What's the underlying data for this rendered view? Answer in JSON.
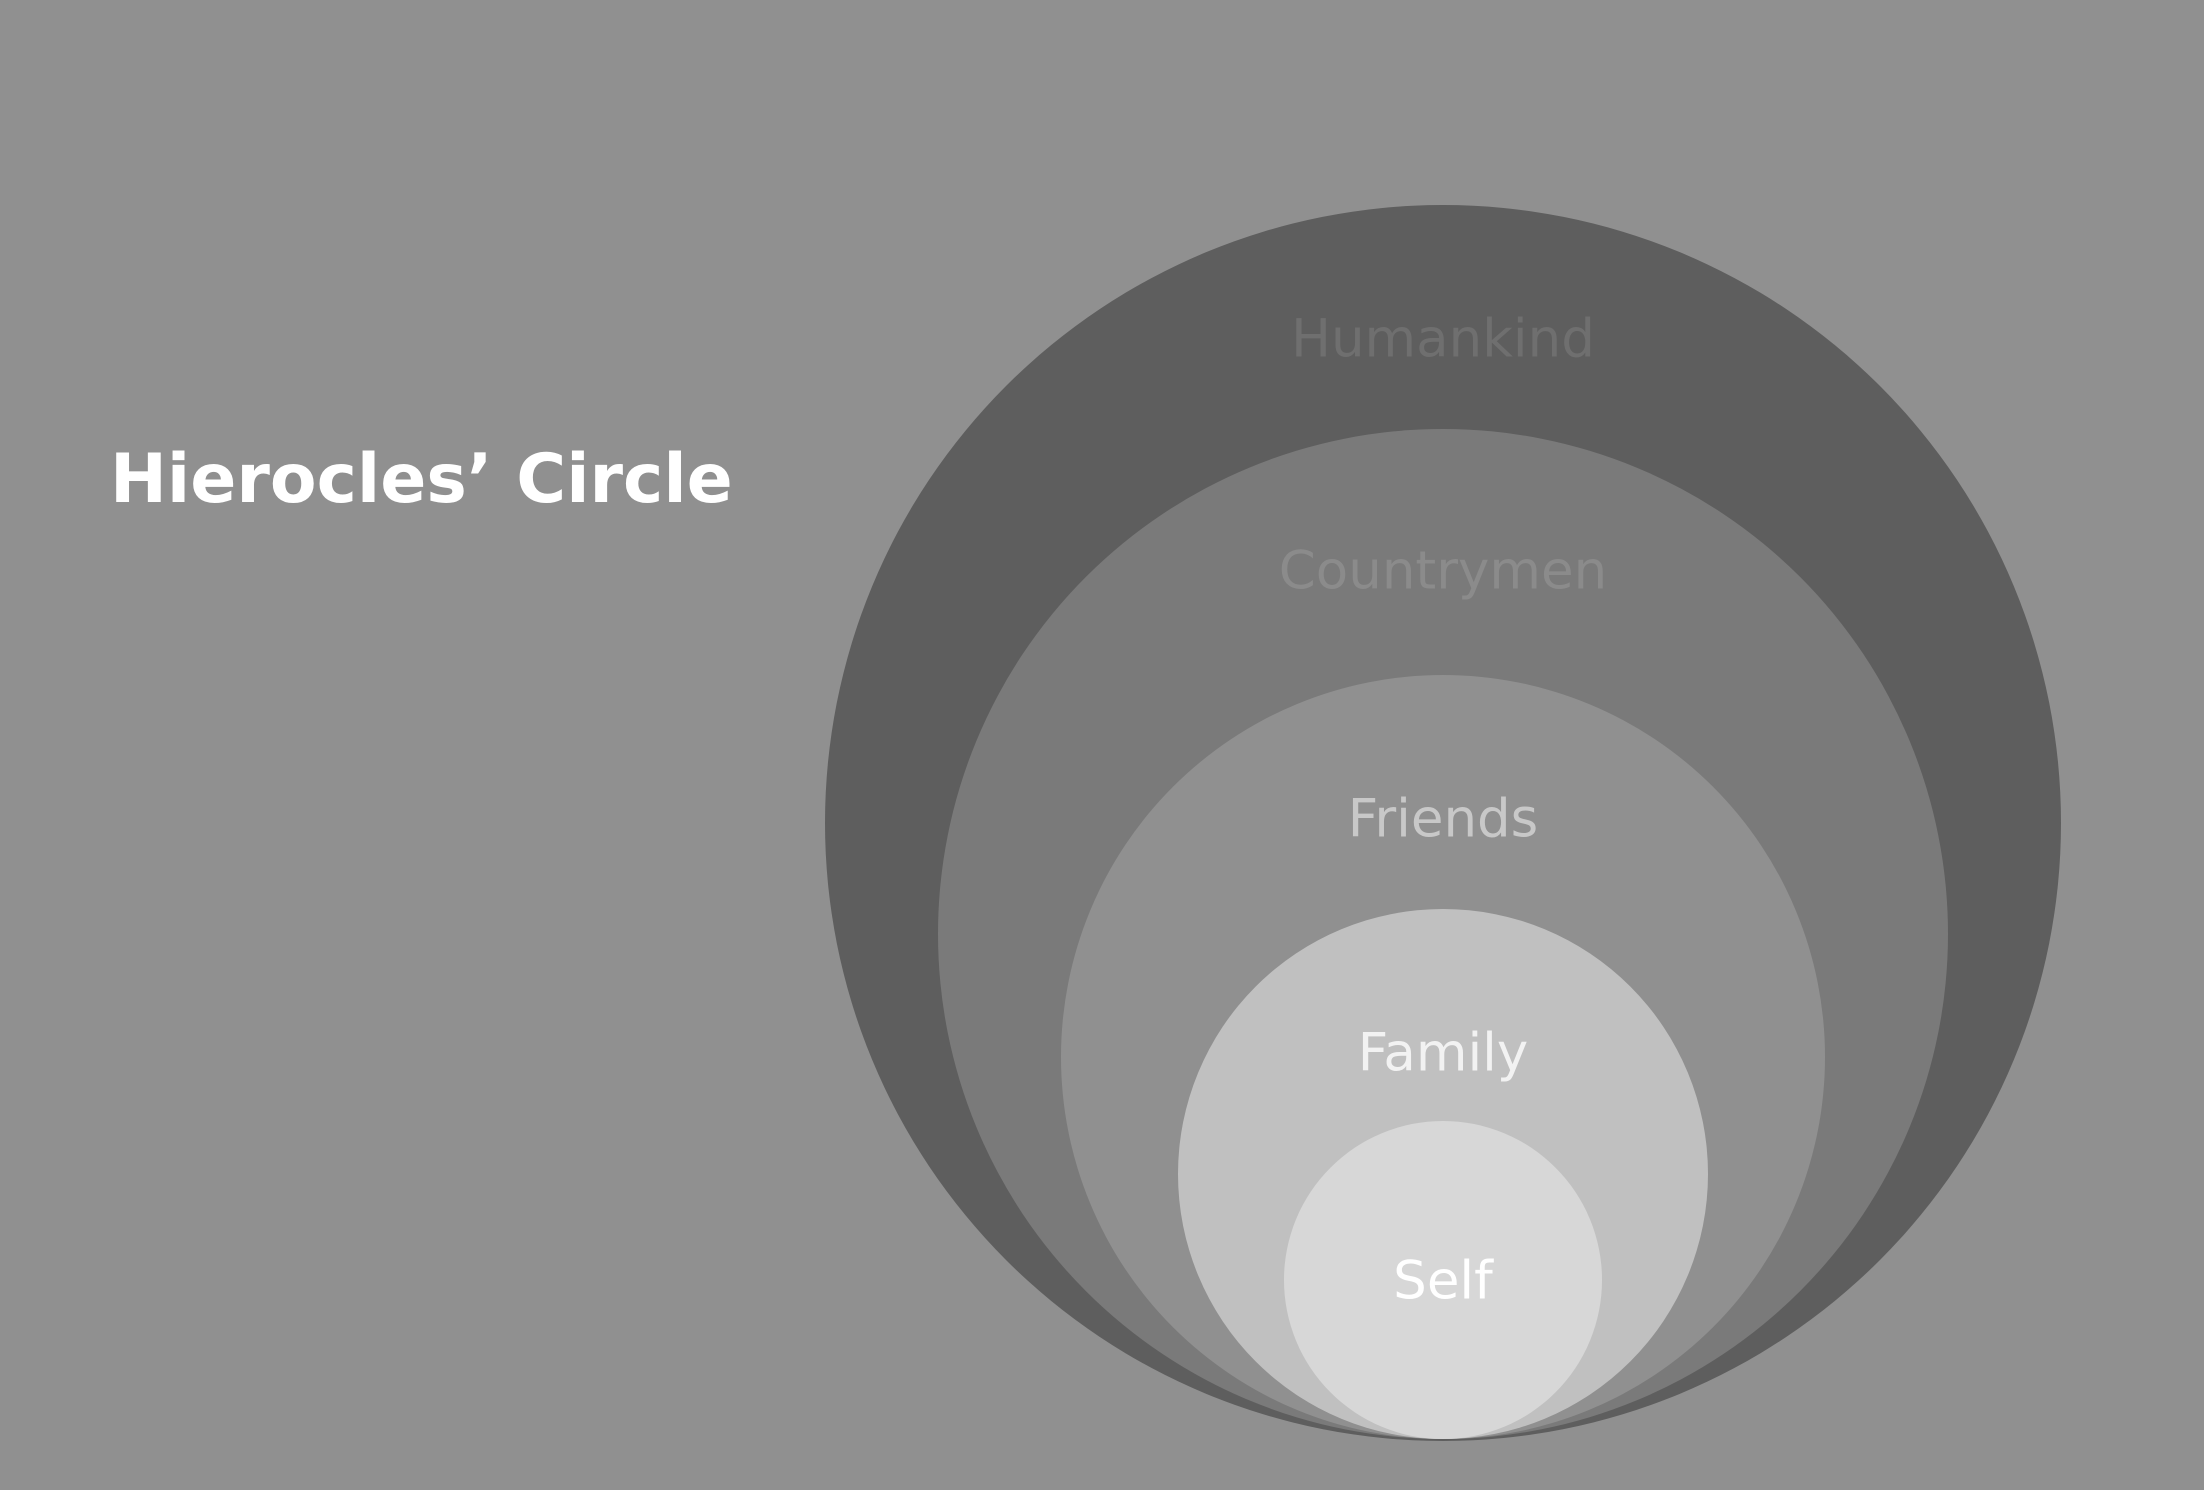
{
  "title": "Hierocles’ Circle",
  "circles": [
    {
      "label": "Humankind",
      "fill": "#5e5e5e",
      "label_color": "#6f6f6f"
    },
    {
      "label": "Countrymen",
      "fill": "#7a7a7a",
      "label_color": "#8b8b8b"
    },
    {
      "label": "Friends",
      "fill": "#909090",
      "label_color": "#c8c8c8"
    },
    {
      "label": "Family",
      "fill": "#c0c0c0",
      "label_color": "#f2f2f2"
    },
    {
      "label": "Self",
      "fill": "#d7d7d7",
      "label_color": "#ffffff"
    }
  ],
  "colors": {
    "background": "#909090",
    "title": "#ffffff"
  }
}
